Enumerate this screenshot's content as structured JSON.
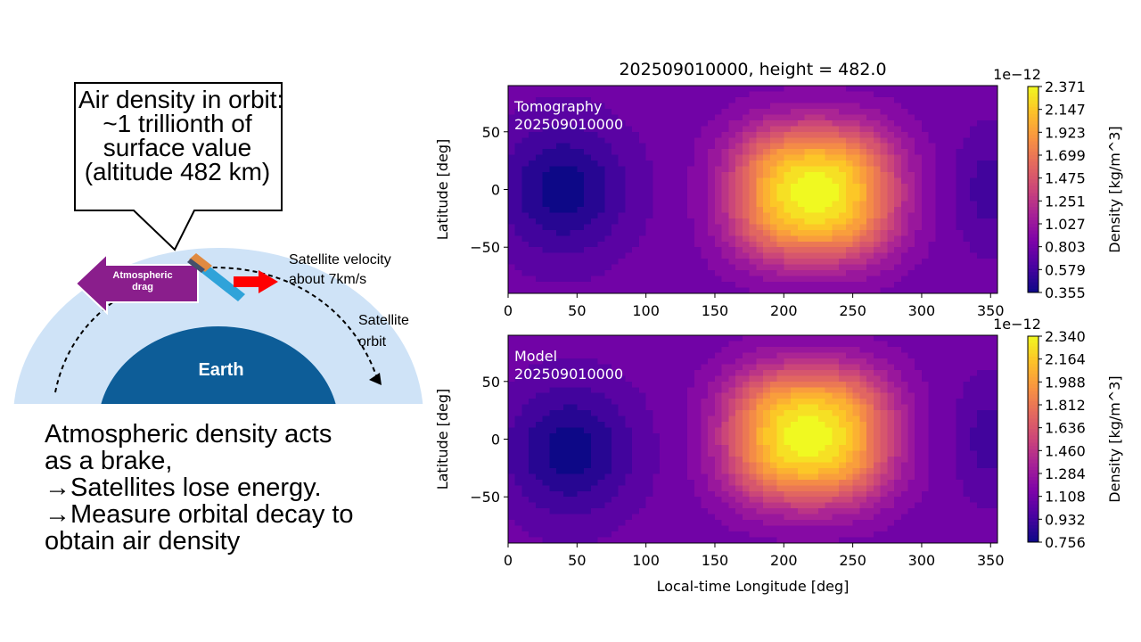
{
  "illustration": {
    "callout_lines": [
      "Air density in orbit:",
      "~1 trillionth of",
      "surface value",
      "(altitude 482 km)"
    ],
    "drag_label_lines": [
      "Atmospheric",
      "drag"
    ],
    "velocity_label_lines": [
      "Satellite velocity",
      "about 7km/s"
    ],
    "orbit_label_lines": [
      "Satellite",
      "orbit"
    ],
    "earth_label": "Earth",
    "explanation_lines": [
      "Atmospheric density acts",
      "as a brake,",
      "→Satellites lose energy.",
      "→Measure orbital decay to",
      "obtain air density"
    ],
    "colors": {
      "atmosphere": "#cfe3f7",
      "earth": "#0d5d98",
      "drag_arrow": "#8a1e8c",
      "velocity_arrow": "#ff0000",
      "satellite_body": "#2fa3d9",
      "satellite_panel": "#e08a40"
    }
  },
  "chart_data": [
    {
      "type": "heatmap",
      "title": "202509010000, height = 482.0",
      "annotation_lines": [
        "Tomography",
        "202509010000"
      ],
      "xlabel": "",
      "ylabel": "Latitude [deg]",
      "x_ticks": [
        "0",
        "50",
        "100",
        "150",
        "200",
        "250",
        "300",
        "350"
      ],
      "y_ticks": [
        "50",
        "0",
        "−50"
      ],
      "xlim": [
        0,
        355
      ],
      "ylim": [
        -90,
        90
      ],
      "colormap": "plasma",
      "peak": {
        "longitude": 222,
        "latitude": -3,
        "value": 2.371
      },
      "minimum": {
        "longitude": 40,
        "latitude": 0,
        "value": 0.355
      },
      "colorbar": {
        "label": "Density [kg/m^3]",
        "scale_label": "1e−12",
        "ticks": [
          "2.371",
          "2.147",
          "1.923",
          "1.699",
          "1.475",
          "1.251",
          "1.027",
          "0.803",
          "0.579",
          "0.355"
        ],
        "range": [
          0.355,
          2.371
        ]
      }
    },
    {
      "type": "heatmap",
      "title": "",
      "annotation_lines": [
        "Model",
        "202509010000"
      ],
      "xlabel": "Local-time Longitude [deg]",
      "ylabel": "Latitude [deg]",
      "x_ticks": [
        "0",
        "50",
        "100",
        "150",
        "200",
        "250",
        "300",
        "350"
      ],
      "y_ticks": [
        "50",
        "0",
        "−50"
      ],
      "xlim": [
        0,
        355
      ],
      "ylim": [
        -90,
        90
      ],
      "colormap": "plasma",
      "peak": {
        "longitude": 218,
        "latitude": 3,
        "value": 2.34
      },
      "minimum": {
        "longitude": 45,
        "latitude": -10,
        "value": 0.756
      },
      "colorbar": {
        "label": "Density [kg/m^3]",
        "scale_label": "1e−12",
        "ticks": [
          "2.340",
          "2.164",
          "1.988",
          "1.812",
          "1.636",
          "1.460",
          "1.284",
          "1.108",
          "0.932",
          "0.756"
        ],
        "range": [
          0.756,
          2.34
        ]
      }
    }
  ]
}
